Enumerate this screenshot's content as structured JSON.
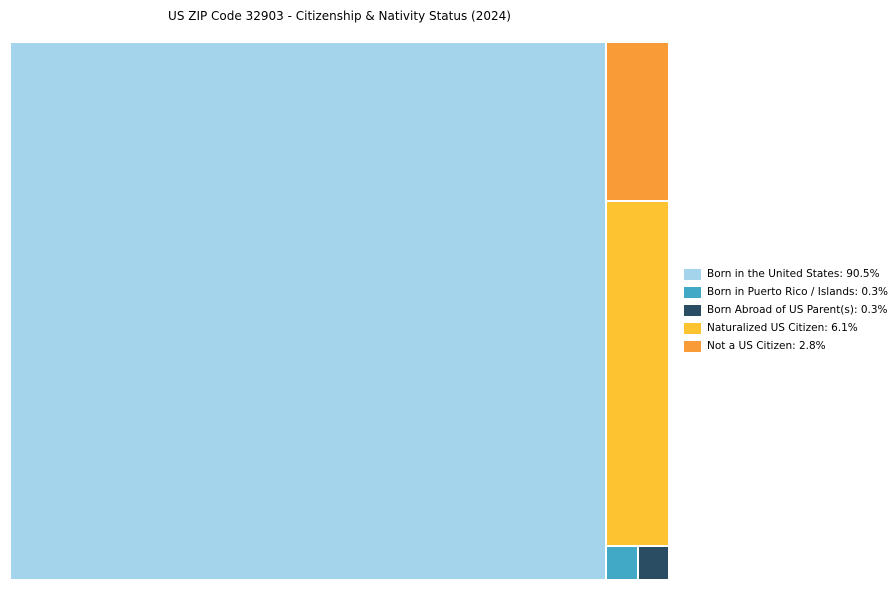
{
  "chart_data": {
    "type": "treemap",
    "title": "US ZIP Code 32903 - Citizenship & Nativity Status (2024)",
    "categories": [
      "Born in the United States",
      "Born in Puerto Rico / Islands",
      "Born Abroad of US Parent(s)",
      "Naturalized US Citizen",
      "Not a US Citizen"
    ],
    "values": [
      90.5,
      0.3,
      0.3,
      6.1,
      2.8
    ],
    "colors": [
      "#a4d4ec",
      "#41a9c6",
      "#2b4d63",
      "#fdc330",
      "#f99b37"
    ],
    "legend_labels": [
      "Born in the United States: 90.5%",
      "Born in Puerto Rico / Islands: 0.3%",
      "Born Abroad of US Parent(s): 0.3%",
      "Naturalized US Citizen: 6.1%",
      "Not a US Citizen: 2.8%"
    ],
    "legend_position": "right",
    "xlabel": "",
    "ylabel": ""
  }
}
